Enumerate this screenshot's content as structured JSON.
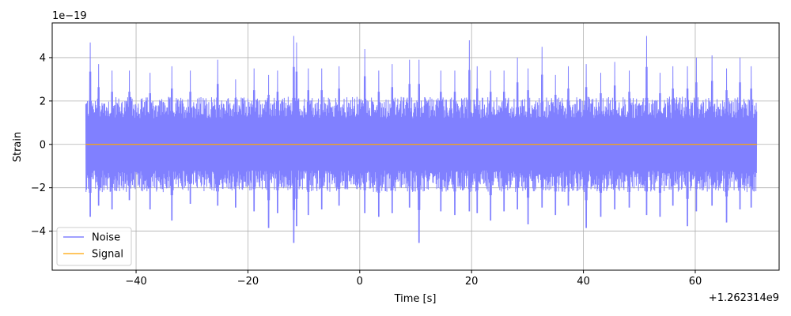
{
  "chart_data": {
    "type": "line",
    "title": "",
    "xlabel": "Time [s]",
    "ylabel": "Strain",
    "y_scale_label": "1e−19",
    "x_offset_label": "+1.262314e9",
    "xlim": [
      -55,
      75
    ],
    "ylim": [
      -5.8,
      5.6
    ],
    "x_ticks": [
      -40,
      -20,
      0,
      20,
      40,
      60
    ],
    "x_tick_labels": [
      "−40",
      "−20",
      "0",
      "20",
      "40",
      "60"
    ],
    "y_ticks": [
      -4,
      -2,
      0,
      2,
      4
    ],
    "y_tick_labels": [
      "−4",
      "−2",
      "0",
      "2",
      "4"
    ],
    "grid": true,
    "legend_position": "lower-left",
    "series": [
      {
        "name": "Noise",
        "color": "#8080ff",
        "x_range": [
          -49,
          71
        ],
        "peaks_x": [
          -48.2,
          -46.7,
          -44.3,
          -41.2,
          -37.5,
          -33.6,
          -30.3,
          -25.4,
          -22.2,
          -18.9,
          -16.3,
          -14.7,
          -11.8,
          -11.3,
          -9.2,
          -6.8,
          -3.7,
          0.9,
          3.4,
          5.8,
          8.9,
          10.6,
          14.5,
          17.0,
          19.6,
          21.0,
          23.4,
          25.8,
          28.2,
          30.1,
          32.6,
          35.0,
          37.3,
          40.5,
          43.1,
          45.6,
          48.2,
          51.3,
          53.7,
          56.0,
          58.6,
          60.2,
          63.0,
          65.6,
          68.0,
          70.0
        ],
        "peaks_upper": [
          4.7,
          3.7,
          3.4,
          3.4,
          3.3,
          3.6,
          3.4,
          3.9,
          3.0,
          3.5,
          3.2,
          3.4,
          5.0,
          4.7,
          3.5,
          3.5,
          3.6,
          4.4,
          3.4,
          3.7,
          3.9,
          3.9,
          3.4,
          3.4,
          4.8,
          3.6,
          3.4,
          3.4,
          4.0,
          3.5,
          4.5,
          3.2,
          3.6,
          3.7,
          3.3,
          3.8,
          3.4,
          5.0,
          3.3,
          3.6,
          3.6,
          4.0,
          4.1,
          3.5,
          4.0,
          3.6
        ],
        "peaks_lower": [
          -3.9,
          -3.3,
          -3.5,
          -3.0,
          -3.5,
          -4.1,
          -3.2,
          -3.3,
          -3.4,
          -3.6,
          -4.5,
          -3.7,
          -5.3,
          -4.4,
          -3.8,
          -3.5,
          -3.3,
          -3.7,
          -3.9,
          -3.7,
          -3.4,
          -5.3,
          -3.6,
          -3.8,
          -3.6,
          -3.7,
          -4.1,
          -3.6,
          -3.5,
          -4.3,
          -3.4,
          -3.8,
          -3.3,
          -4.5,
          -3.9,
          -3.5,
          -3.4,
          -3.8,
          -3.9,
          -3.3,
          -4.4,
          -3.6,
          -3.3,
          -4.2,
          -3.5,
          -3.4
        ],
        "envelope_upper": 2.0,
        "envelope_lower": -2.0
      },
      {
        "name": "Signal",
        "color": "#ffa500",
        "x": [
          -49,
          71
        ],
        "y": [
          0,
          0
        ]
      }
    ]
  }
}
